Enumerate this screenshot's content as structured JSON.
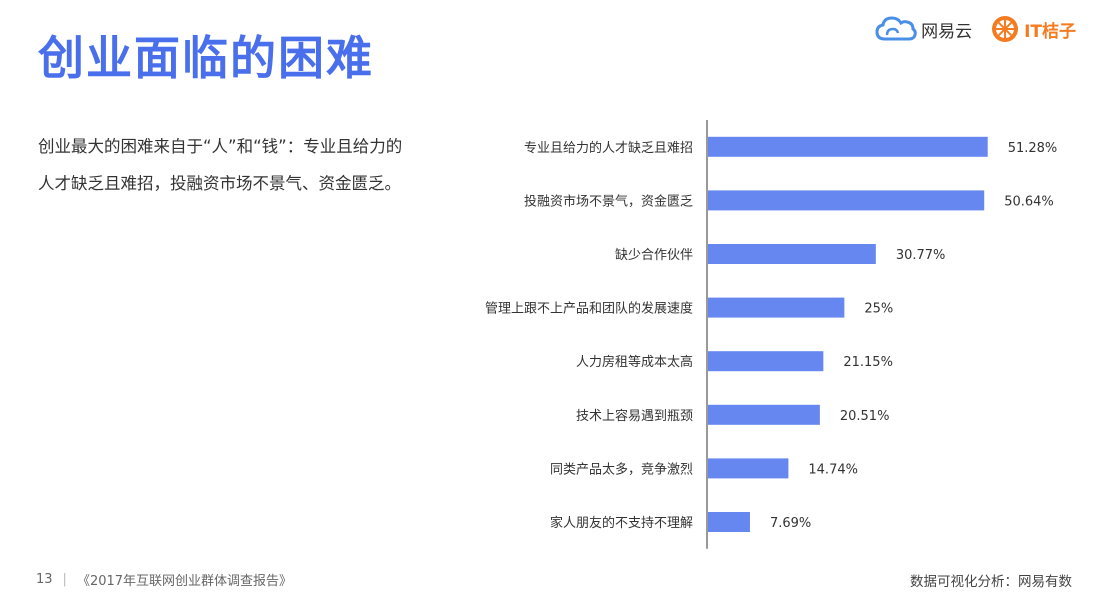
{
  "page": {
    "title": "创业面临的困难",
    "description": "创业最大的困难来自于“人”和“钱”：专业且给力的人才缺乏且难招，投融资市场不景气、资金匮乏。"
  },
  "logos": {
    "netease_cloud": "网易云",
    "itjuzi": "IT桔子"
  },
  "footer": {
    "page_number": "13",
    "separator": "|",
    "report_name": "《2017年互联网创业群体调查报告》",
    "source": "数据可视化分析：网易有数"
  },
  "colors": {
    "title": "#4a6fec",
    "bar": "#6687f0",
    "axis": "#333333",
    "itjuzi": "#f47b20"
  },
  "chart_data": {
    "type": "bar",
    "orientation": "horizontal",
    "categories": [
      "专业且给力的人才缺乏且难招",
      "投融资市场不景气，资金匮乏",
      "缺少合作伙伴",
      "管理上跟不上产品和团队的发展速度",
      "人力房租等成本太高",
      "技术上容易遇到瓶颈",
      "同类产品太多，竞争激烈",
      "家人朋友的不支持不理解"
    ],
    "values": [
      51.28,
      50.64,
      30.77,
      25,
      21.15,
      20.51,
      14.74,
      7.69
    ],
    "value_labels": [
      "51.28%",
      "50.64%",
      "30.77%",
      "25%",
      "21.15%",
      "20.51%",
      "14.74%",
      "7.69%"
    ],
    "xlim": [
      0,
      55
    ],
    "grid": false,
    "legend": "none"
  }
}
